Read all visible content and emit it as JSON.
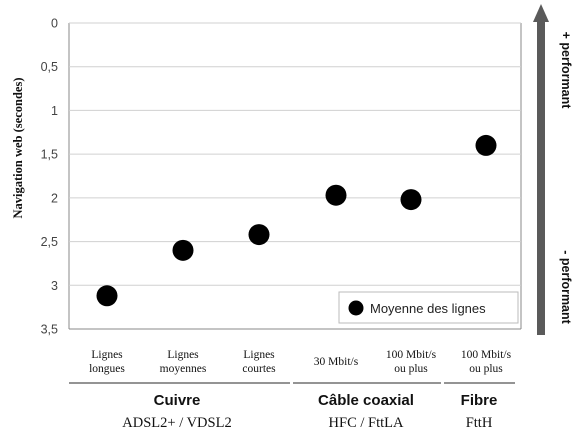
{
  "chart_data": {
    "type": "scatter",
    "ylabel": "Navigation web (secondes)",
    "ylim": [
      0,
      3.5
    ],
    "y_inverted": true,
    "y_ticks": [
      "0",
      "0,5",
      "1",
      "1,5",
      "2",
      "2,5",
      "3",
      "3,5"
    ],
    "grid": true,
    "legend": {
      "placement": "bottom-right",
      "label": "Moyenne des lignes"
    },
    "categories": [
      [
        "Lignes",
        "longues"
      ],
      [
        "Lignes",
        "moyennes"
      ],
      [
        "Lignes",
        "courtes"
      ],
      [
        "30 Mbit/s"
      ],
      [
        "100 Mbit/s",
        "ou plus"
      ],
      [
        "100 Mbit/s",
        "ou plus"
      ]
    ],
    "series": [
      {
        "name": "Moyenne des lignes",
        "values": [
          3.12,
          2.6,
          2.42,
          1.97,
          2.02,
          1.4
        ]
      }
    ],
    "groups": [
      {
        "title": "Cuivre",
        "subtitle": "ADSL2+ / VDSL2"
      },
      {
        "title": "Câble coaxial",
        "subtitle": "HFC / FttLA"
      },
      {
        "title": "Fibre",
        "subtitle": "FttH"
      }
    ],
    "arrow_labels": {
      "top": "+ performant",
      "bottom": "- performant"
    }
  }
}
